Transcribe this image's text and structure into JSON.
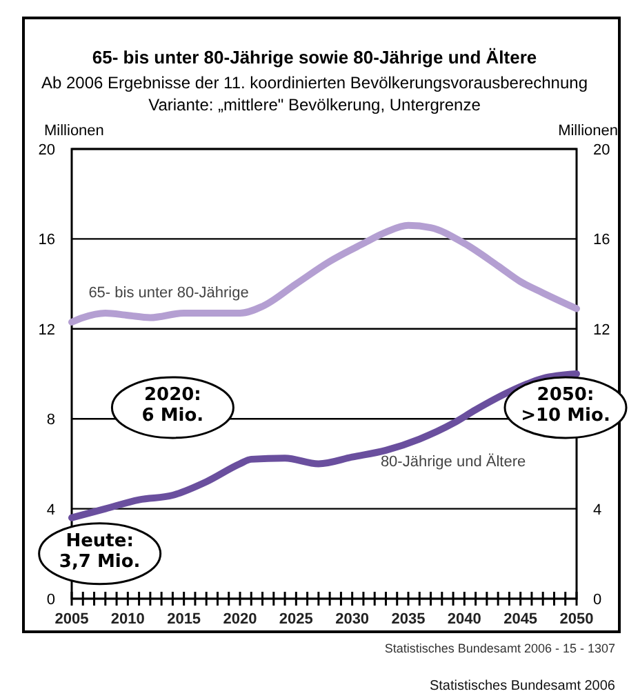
{
  "chart_data": {
    "type": "line",
    "title": "65- bis unter 80-Jährige sowie 80-Jährige und Ältere",
    "subtitle": "Ab 2006 Ergebnisse der 11. koordinierten Bevölkerungsvorausberechnung\nVariante: „mittlere\" Bevölkerung, Untergrenze",
    "ylabel": "Millionen",
    "y2label": "Millionen",
    "xlim": [
      2005,
      2050
    ],
    "xticks": [
      2005,
      {
        "value": 2006,
        "label": null
      },
      {
        "value": 2007,
        "label": null
      },
      {
        "value": 2008,
        "label": null
      },
      {
        "value": 2009,
        "label": null
      },
      2010,
      {
        "value": 2011,
        "label": null
      },
      {
        "value": 2012,
        "label": null
      },
      {
        "value": 2013,
        "label": null
      },
      {
        "value": 2014,
        "label": null
      },
      2015,
      {
        "value": 2016,
        "label": null
      },
      {
        "value": 2017,
        "label": null
      },
      {
        "value": 2018,
        "label": null
      },
      {
        "value": 2019,
        "label": null
      },
      2020,
      {
        "value": 2021,
        "label": null
      },
      {
        "value": 2022,
        "label": null
      },
      {
        "value": 2023,
        "label": null
      },
      {
        "value": 2024,
        "label": null
      },
      2025,
      {
        "value": 2026,
        "label": null
      },
      {
        "value": 2027,
        "label": null
      },
      {
        "value": 2028,
        "label": null
      },
      {
        "value": 2029,
        "label": null
      },
      2030,
      {
        "value": 2031,
        "label": null
      },
      {
        "value": 2032,
        "label": null
      },
      {
        "value": 2033,
        "label": null
      },
      {
        "value": 2034,
        "label": null
      },
      2035,
      {
        "value": 2036,
        "label": null
      },
      {
        "value": 2037,
        "label": null
      },
      {
        "value": 2038,
        "label": null
      },
      {
        "value": 2039,
        "label": null
      },
      2040,
      {
        "value": 2041,
        "label": null
      },
      {
        "value": 2042,
        "label": null
      },
      {
        "value": 2043,
        "label": null
      },
      {
        "value": 2044,
        "label": null
      },
      2045,
      {
        "value": 2046,
        "label": null
      },
      {
        "value": 2047,
        "label": null
      },
      {
        "value": 2048,
        "label": null
      },
      {
        "value": 2049,
        "label": null
      },
      2050
    ],
    "ylim": [
      0,
      20
    ],
    "yticks": [
      0,
      4,
      8,
      12,
      16,
      20
    ],
    "y2lim": [
      0,
      20
    ],
    "y2ticks": [
      0,
      4,
      12,
      16,
      20
    ],
    "grid": "y",
    "line_style": "solid",
    "series": [
      {
        "name": "65- bis unter 80-Jährige",
        "color": "#b49fd2",
        "x": [
          2005,
          2006,
          2008,
          2010,
          2012,
          2015,
          2018,
          2020,
          2022,
          2025,
          2028,
          2031,
          2033,
          2035,
          2037,
          2040,
          2043,
          2045,
          2047,
          2050
        ],
        "values": [
          12.3,
          12.5,
          12.7,
          12.6,
          12.5,
          12.7,
          12.7,
          12.7,
          13.0,
          14.0,
          15.0,
          15.8,
          16.3,
          16.6,
          16.5,
          15.8,
          14.8,
          14.1,
          13.6,
          12.9
        ]
      },
      {
        "name": "80-Jährige und Ältere",
        "color": "#6a4f9e",
        "x": [
          2005,
          2008,
          2011,
          2014,
          2017,
          2020,
          2021,
          2024,
          2027,
          2030,
          2033,
          2036,
          2039,
          2041,
          2044,
          2047,
          2050
        ],
        "values": [
          3.6,
          4.0,
          4.4,
          4.6,
          5.2,
          6.0,
          6.2,
          6.25,
          6.0,
          6.3,
          6.6,
          7.1,
          7.8,
          8.4,
          9.2,
          9.8,
          10.0
        ]
      }
    ],
    "annotations": [
      {
        "text": "Heute:\n3,7 Mio.",
        "x": 2005,
        "y": 3.7
      },
      {
        "text": "2020:\n6 Mio.",
        "x": 2020,
        "y": 6
      },
      {
        "text": "2050:\n>10 Mio.",
        "x": 2050,
        "y": 10
      },
      "Statistisches Bundesamt 2006 - 15 - 1307",
      "Statistisches Bundesamt 2006"
    ]
  }
}
